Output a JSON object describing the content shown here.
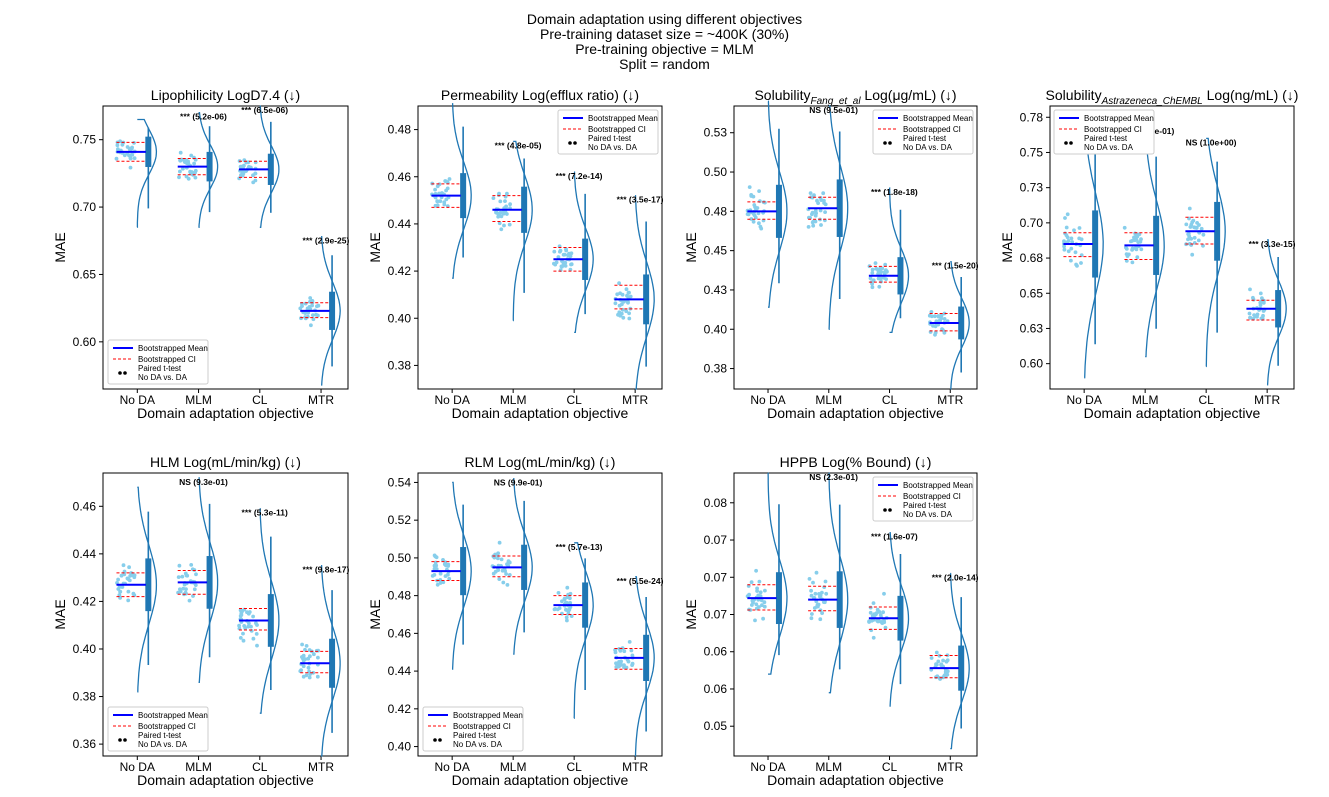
{
  "suptitle": {
    "line1": "Domain adaptation using different objectives",
    "line2": "Pre-training dataset size = ~400K (30%)",
    "line3": "Pre-training objective = MLM",
    "line4": "Split = random"
  },
  "colors": {
    "violin": "#1f77b4",
    "points": "#87ceeb",
    "mean": "#0000ff",
    "ci": "#ff0000",
    "frame": "#000000"
  },
  "legend_labels": {
    "mean": "Bootstrapped Mean",
    "ci": "Bootstrapped CI",
    "test_line1": "Paired t-test",
    "test_line2": "No DA vs. DA"
  },
  "chart_data": [
    {
      "type": "violin",
      "title": "Lipophilicity LogD7.4 (↓)",
      "xlabel": "Domain adaptation objective",
      "ylabel": "MAE",
      "categories": [
        "No DA",
        "MLM",
        "CL",
        "MTR"
      ],
      "ylim": [
        0.565,
        0.775
      ],
      "yticks": [
        0.6,
        0.65,
        0.7,
        0.75
      ],
      "ytick_labels": [
        "0.60",
        "0.65",
        "0.70",
        "0.75"
      ],
      "means": [
        0.741,
        0.73,
        0.728,
        0.623
      ],
      "ci": [
        [
          0.734,
          0.748
        ],
        [
          0.724,
          0.736
        ],
        [
          0.722,
          0.734
        ],
        [
          0.618,
          0.629
        ]
      ],
      "ranges": [
        [
          0.685,
          0.765
        ],
        [
          0.685,
          0.77
        ],
        [
          0.685,
          0.775
        ],
        [
          0.568,
          0.678
        ]
      ],
      "annotations": [
        "",
        "*** (5.2e-06)",
        "*** (6.5e-06)",
        "*** (2.9e-25)"
      ],
      "legend_position": "lower-left"
    },
    {
      "type": "violin",
      "title": "Permeability Log(efflux ratio) (↓)",
      "xlabel": "Domain adaptation objective",
      "ylabel": "MAE",
      "categories": [
        "No DA",
        "MLM",
        "CL",
        "MTR"
      ],
      "ylim": [
        0.37,
        0.49
      ],
      "yticks": [
        0.38,
        0.4,
        0.42,
        0.44,
        0.46,
        0.48
      ],
      "ytick_labels": [
        "0.38",
        "0.40",
        "0.42",
        "0.44",
        "0.46",
        "0.48"
      ],
      "means": [
        0.452,
        0.446,
        0.425,
        0.408
      ],
      "ci": [
        [
          0.447,
          0.457
        ],
        [
          0.441,
          0.452
        ],
        [
          0.42,
          0.43
        ],
        [
          0.404,
          0.414
        ]
      ],
      "ranges": [
        [
          0.417,
          0.491
        ],
        [
          0.399,
          0.475
        ],
        [
          0.394,
          0.462
        ],
        [
          0.37,
          0.452
        ]
      ],
      "annotations": [
        "",
        "*** (4.8e-05)",
        "*** (7.2e-14)",
        "*** (3.5e-17)"
      ],
      "legend_position": "upper-right"
    },
    {
      "type": "violin",
      "title": "Solubility_Fang_et_al Log(μg/mL) (↓)",
      "title_parts": {
        "pre": "Solubility",
        "sub": "Fang_et_al",
        "post": " Log(μg/mL) (↓)"
      },
      "xlabel": "Domain adaptation objective",
      "ylabel": "MAE",
      "categories": [
        "No DA",
        "MLM",
        "CL",
        "MTR"
      ],
      "ylim": [
        0.362,
        0.542
      ],
      "yticks": [
        0.375,
        0.4,
        0.425,
        0.45,
        0.475,
        0.5,
        0.525
      ],
      "ytick_labels": [
        "0.38",
        "0.40",
        "0.43",
        "0.45",
        "0.48",
        "0.50",
        "0.53"
      ],
      "means": [
        0.475,
        0.477,
        0.434,
        0.404
      ],
      "ci": [
        [
          0.47,
          0.481
        ],
        [
          0.47,
          0.484
        ],
        [
          0.43,
          0.44
        ],
        [
          0.399,
          0.41
        ]
      ],
      "ranges": [
        [
          0.414,
          0.545
        ],
        [
          0.4,
          0.542
        ],
        [
          0.398,
          0.49
        ],
        [
          0.362,
          0.443
        ]
      ],
      "annotations": [
        "",
        "NS (9.5e-01)",
        "*** (1.8e-18)",
        "*** (1.5e-20)"
      ],
      "legend_position": "upper-right"
    },
    {
      "type": "violin",
      "title": "Solubility_Astrazeneca_ChEMBL Log(ng/mL) (↓)",
      "title_parts": {
        "pre": "Solubility",
        "sub": "Astrazeneca_ChEMBL",
        "post": " Log(ng/mL) (↓)"
      },
      "xlabel": "Domain adaptation objective",
      "ylabel": "MAE",
      "categories": [
        "No DA",
        "MLM",
        "CL",
        "MTR"
      ],
      "ylim": [
        0.582,
        0.783
      ],
      "yticks": [
        0.6,
        0.625,
        0.65,
        0.675,
        0.7,
        0.725,
        0.75,
        0.775
      ],
      "ytick_labels": [
        "0.60",
        "0.63",
        "0.65",
        "0.68",
        "0.70",
        "0.73",
        "0.75",
        "0.78"
      ],
      "means": [
        0.685,
        0.684,
        0.694,
        0.639
      ],
      "ci": [
        [
          0.676,
          0.693
        ],
        [
          0.674,
          0.693
        ],
        [
          0.685,
          0.704
        ],
        [
          0.631,
          0.645
        ]
      ],
      "ranges": [
        [
          0.59,
          0.775
        ],
        [
          0.605,
          0.768
        ],
        [
          0.598,
          0.76
        ],
        [
          0.585,
          0.688
        ]
      ],
      "annotations": [
        "",
        "NS (3.3e-01)",
        "NS (1.0e+00)",
        "*** (3.3e-15)"
      ],
      "legend_position": "upper-left"
    },
    {
      "type": "violin",
      "title": "HLM Log(mL/min/kg) (↓)",
      "xlabel": "Domain adaptation objective",
      "ylabel": "MAE",
      "categories": [
        "No DA",
        "MLM",
        "CL",
        "MTR"
      ],
      "ylim": [
        0.355,
        0.474
      ],
      "yticks": [
        0.36,
        0.38,
        0.4,
        0.42,
        0.44,
        0.46
      ],
      "ytick_labels": [
        "0.36",
        "0.38",
        "0.40",
        "0.42",
        "0.44",
        "0.46"
      ],
      "means": [
        0.427,
        0.428,
        0.412,
        0.394
      ],
      "ci": [
        [
          0.422,
          0.432
        ],
        [
          0.423,
          0.433
        ],
        [
          0.408,
          0.417
        ],
        [
          0.39,
          0.399
        ]
      ],
      "ranges": [
        [
          0.382,
          0.468
        ],
        [
          0.386,
          0.472
        ],
        [
          0.373,
          0.459
        ],
        [
          0.355,
          0.435
        ]
      ],
      "annotations": [
        "",
        "NS (9.3e-01)",
        "*** (5.3e-11)",
        "*** (9.8e-17)"
      ],
      "legend_position": "lower-left"
    },
    {
      "type": "violin",
      "title": "RLM Log(mL/min/kg) (↓)",
      "xlabel": "Domain adaptation objective",
      "ylabel": "MAE",
      "categories": [
        "No DA",
        "MLM",
        "CL",
        "MTR"
      ],
      "ylim": [
        0.395,
        0.545
      ],
      "yticks": [
        0.4,
        0.42,
        0.44,
        0.46,
        0.48,
        0.5,
        0.52,
        0.54
      ],
      "ytick_labels": [
        "0.40",
        "0.42",
        "0.44",
        "0.46",
        "0.48",
        "0.50",
        "0.52",
        "0.54"
      ],
      "means": [
        0.493,
        0.495,
        0.475,
        0.447
      ],
      "ci": [
        [
          0.488,
          0.498
        ],
        [
          0.49,
          0.501
        ],
        [
          0.47,
          0.48
        ],
        [
          0.441,
          0.452
        ]
      ],
      "ranges": [
        [
          0.441,
          0.54
        ],
        [
          0.449,
          0.542
        ],
        [
          0.415,
          0.508
        ],
        [
          0.395,
          0.49
        ]
      ],
      "annotations": [
        "",
        "NS (9.9e-01)",
        "*** (5.7e-13)",
        "*** (5.5e-24)"
      ],
      "legend_position": "lower-left"
    },
    {
      "type": "violin",
      "title": "HPPB Log(% Bound) (↓)",
      "xlabel": "Domain adaptation objective",
      "ylabel": "MAE",
      "categories": [
        "No DA",
        "MLM",
        "CL",
        "MTR"
      ],
      "ylim": [
        0.046,
        0.084
      ],
      "yticks": [
        0.05,
        0.055,
        0.06,
        0.065,
        0.07,
        0.075,
        0.08
      ],
      "ytick_labels": [
        "0.05",
        "0.06",
        "0.06",
        "0.07",
        "0.07",
        "0.07",
        "0.08"
      ],
      "means": [
        0.0672,
        0.067,
        0.0645,
        0.0578
      ],
      "ci": [
        [
          0.0656,
          0.069
        ],
        [
          0.0655,
          0.0688
        ],
        [
          0.063,
          0.066
        ],
        [
          0.0565,
          0.0595
        ]
      ],
      "ranges": [
        [
          0.057,
          0.084
        ],
        [
          0.0545,
          0.084
        ],
        [
          0.0527,
          0.076
        ],
        [
          0.047,
          0.0705
        ]
      ],
      "annotations": [
        "",
        "NS (2.3e-01)",
        "*** (1.6e-07)",
        "*** (2.0e-14)"
      ],
      "legend_position": "upper-right"
    }
  ]
}
